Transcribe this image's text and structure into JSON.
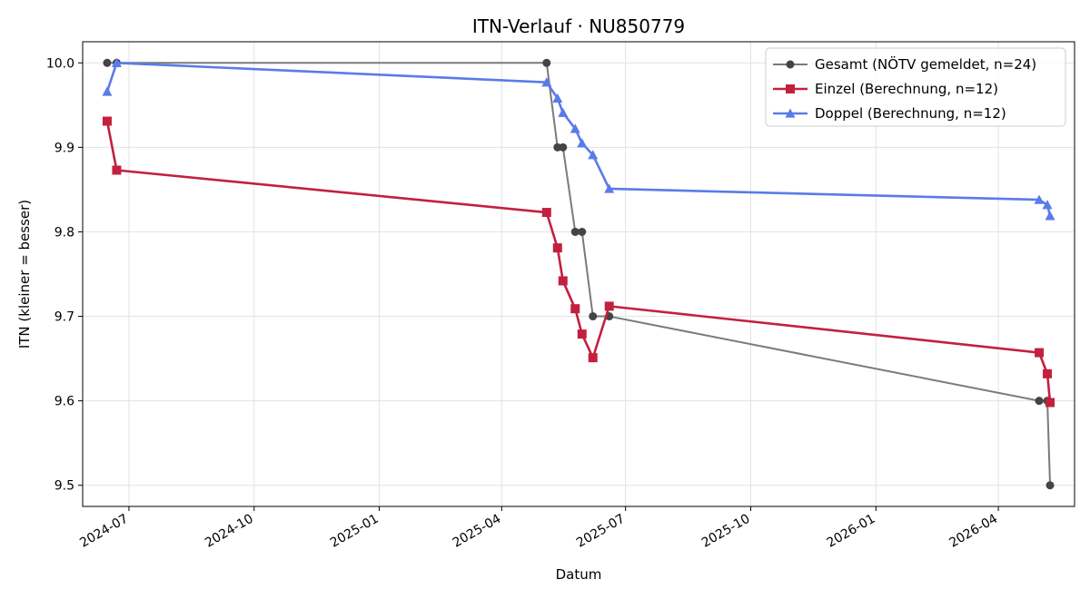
{
  "chart_data": {
    "type": "line",
    "title": "ITN-Verlauf · NU850779",
    "xlabel": "Datum",
    "ylabel": "ITN  (kleiner = besser)",
    "xlim": [
      "2024-05-28",
      "2026-05-27"
    ],
    "ylim": [
      9.475,
      10.025
    ],
    "x_ticks": [
      "2024-07-01",
      "2024-10-01",
      "2025-01-01",
      "2025-04-01",
      "2025-07-01",
      "2025-10-01",
      "2026-01-01",
      "2026-04-01"
    ],
    "x_tick_labels": [
      "2024-07",
      "2024-10",
      "2025-01",
      "2025-04",
      "2025-07",
      "2025-10",
      "2026-01",
      "2026-04"
    ],
    "y_ticks": [
      9.5,
      9.6,
      9.7,
      9.8,
      9.9,
      10.0
    ],
    "y_tick_labels": [
      "9.5",
      "9.6",
      "9.7",
      "9.8",
      "9.9",
      "10.0"
    ],
    "grid": true,
    "legend_position": "top-right",
    "series": [
      {
        "name": "Gesamt (NÖTV gemeldet, n=24)",
        "color": "#555555",
        "marker": "circle",
        "x": [
          "2024-06-15",
          "2024-06-22",
          "2025-05-04",
          "2025-05-12",
          "2025-05-16",
          "2025-05-25",
          "2025-05-30",
          "2025-06-07",
          "2025-06-19",
          "2026-05-01",
          "2026-05-07",
          "2026-05-09"
        ],
        "y": [
          10.0,
          10.0,
          10.0,
          9.9,
          9.9,
          9.8,
          9.8,
          9.7,
          9.7,
          9.6,
          9.6,
          9.5
        ]
      },
      {
        "name": "Einzel (Berechnung, n=12)",
        "color": "#c3203f",
        "marker": "square",
        "x": [
          "2024-06-15",
          "2024-06-22",
          "2025-05-04",
          "2025-05-12",
          "2025-05-16",
          "2025-05-25",
          "2025-05-30",
          "2025-06-07",
          "2025-06-19",
          "2026-05-01",
          "2026-05-07",
          "2026-05-09"
        ],
        "y": [
          9.931,
          9.873,
          9.823,
          9.781,
          9.742,
          9.709,
          9.679,
          9.651,
          9.712,
          9.657,
          9.632,
          9.598
        ]
      },
      {
        "name": "Doppel (Berechnung, n=12)",
        "color": "#5a7be8",
        "marker": "triangle",
        "x": [
          "2024-06-15",
          "2024-06-22",
          "2025-05-04",
          "2025-05-12",
          "2025-05-16",
          "2025-05-25",
          "2025-05-30",
          "2025-06-07",
          "2025-06-19",
          "2026-05-01",
          "2026-05-07",
          "2026-05-09"
        ],
        "y": [
          9.966,
          10.0,
          9.977,
          9.958,
          9.941,
          9.922,
          9.905,
          9.891,
          9.851,
          9.838,
          9.832,
          9.819
        ]
      }
    ]
  }
}
